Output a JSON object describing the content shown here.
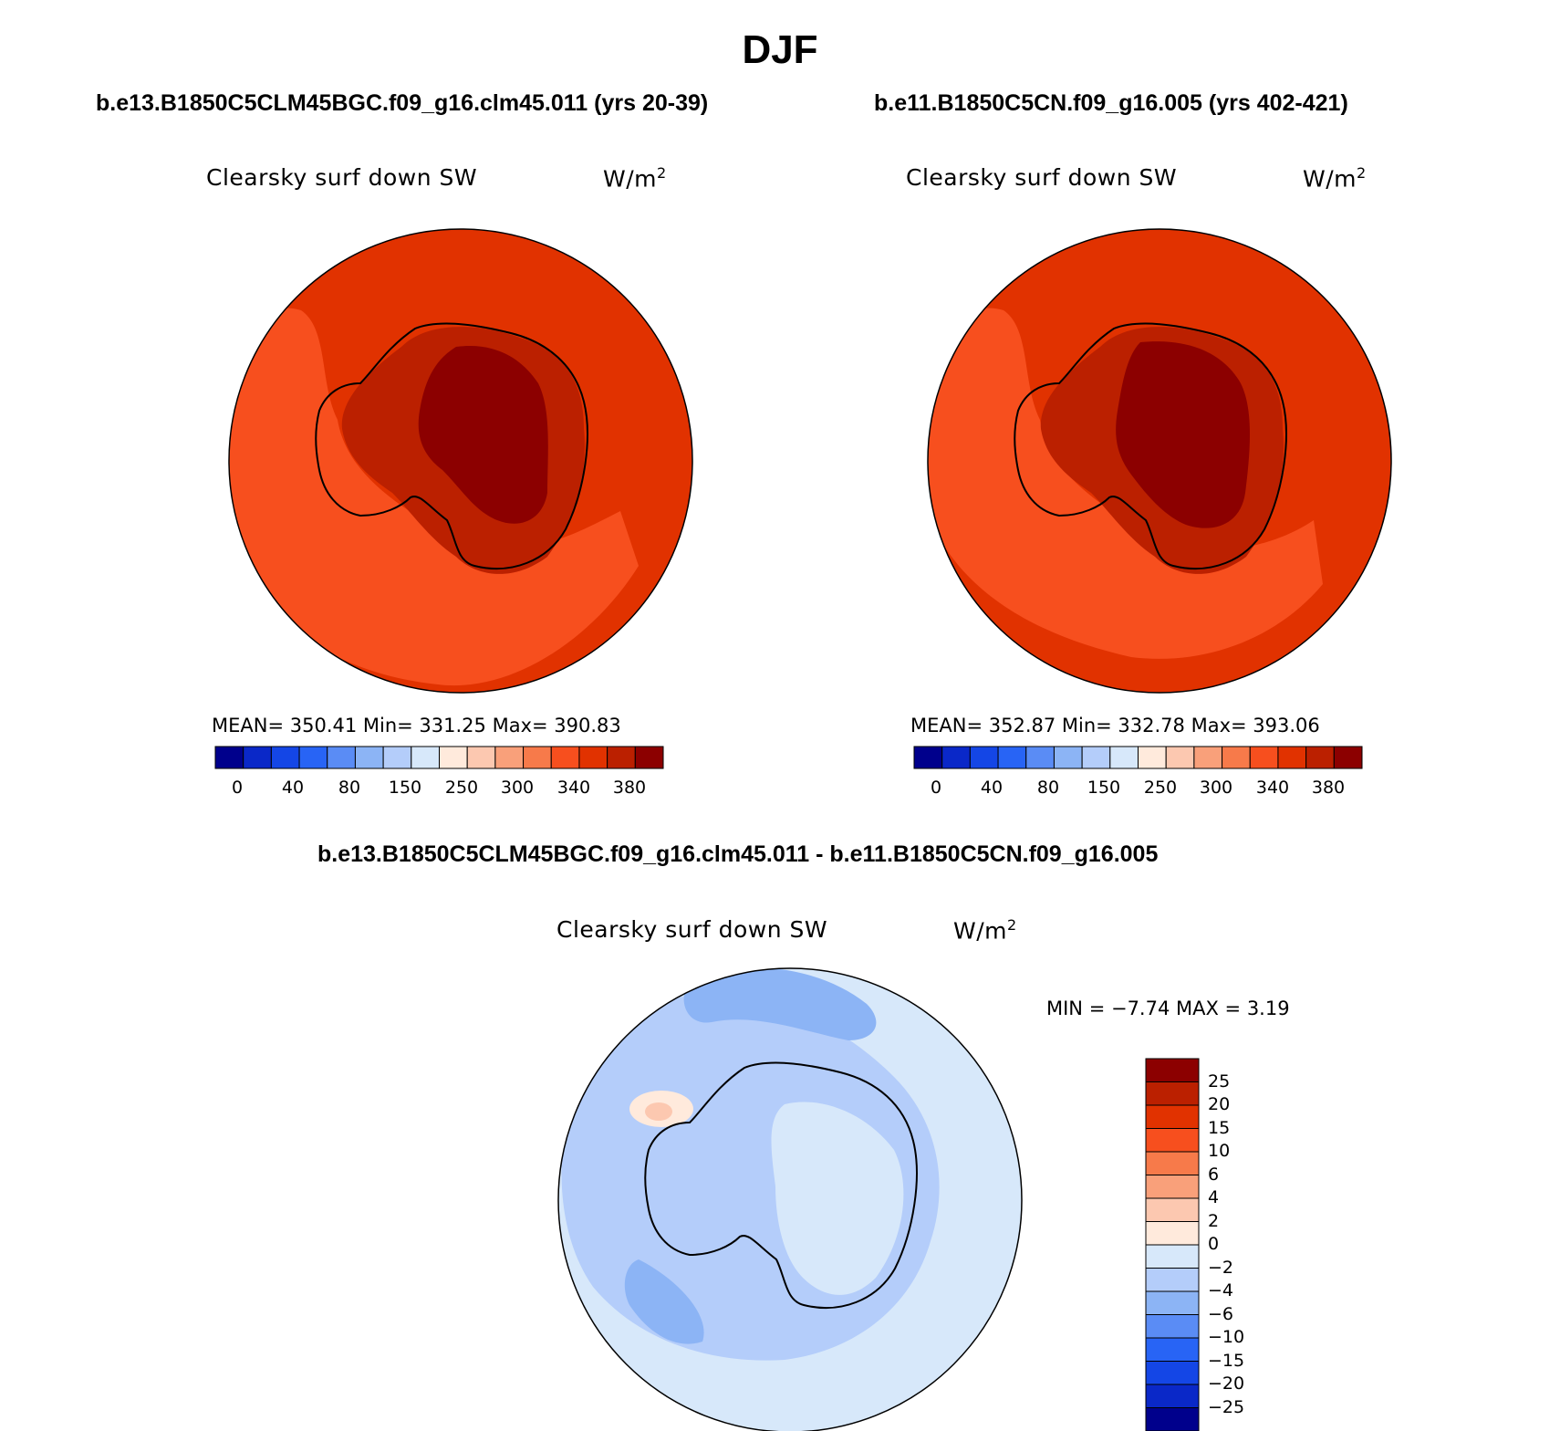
{
  "figure": {
    "season": "DJF",
    "case1": "b.e13.B1850C5CLM45BGC.f09_g16.clm45.011 (yrs 20-39)",
    "case2": "b.e11.B1850C5CN.f09_g16.005 (yrs 402-421)",
    "diff_title": "b.e13.B1850C5CLM45BGC.f09_g16.clm45.011 - b.e11.B1850C5CN.f09_g16.005"
  },
  "panels": [
    {
      "variable": "Clearsky surf down SW",
      "units": "W/m",
      "units_sup": "2",
      "stats": "MEAN= 350.41   Min= 331.25   Max= 390.83"
    },
    {
      "variable": "Clearsky surf down SW",
      "units": "W/m",
      "units_sup": "2",
      "stats": "MEAN= 352.87   Min= 332.78   Max= 393.06"
    },
    {
      "variable": "Clearsky surf down SW",
      "units": "W/m",
      "units_sup": "2",
      "stats": "MIN =   −7.74 MAX =    3.19"
    }
  ],
  "colorbar_horizontal": {
    "colors": [
      "#00008c",
      "#0a28c8",
      "#1446e6",
      "#2864f5",
      "#5a8cf5",
      "#8cb4f5",
      "#b4cdfa",
      "#d7e8fa",
      "#ffeadc",
      "#fcc8b0",
      "#f9a07a",
      "#f77a4a",
      "#f74f1e",
      "#e13200",
      "#bb2000",
      "#8c0000"
    ],
    "labels": [
      "0",
      "40",
      "80",
      "150",
      "250",
      "300",
      "340",
      "380"
    ]
  },
  "colorbar_vertical": {
    "colors": [
      "#8c0000",
      "#bb2000",
      "#e13200",
      "#f74f1e",
      "#f77a4a",
      "#f9a07a",
      "#fcc8b0",
      "#ffeadc",
      "#d7e8fa",
      "#b4cdfa",
      "#8cb4f5",
      "#5a8cf5",
      "#2864f5",
      "#1446e6",
      "#0a28c8",
      "#00008c"
    ],
    "labels": [
      "25",
      "20",
      "15",
      "10",
      "6",
      "4",
      "2",
      "0",
      "−2",
      "−4",
      "−6",
      "−10",
      "−15",
      "−20",
      "−25"
    ]
  },
  "map_colors": {
    "ocean_main": "#e13200",
    "ocean_low": "#f74f1e",
    "land_mid": "#bb2000",
    "land_high": "#8c0000",
    "diff_light": "#d7e8fa",
    "diff_mid": "#b4cdfa",
    "diff_strong": "#8cb4f5",
    "diff_deep": "#5a8cf5",
    "diff_pos": "#fcc8b0",
    "diff_pos_light": "#ffeadc",
    "coast": "#000000"
  }
}
